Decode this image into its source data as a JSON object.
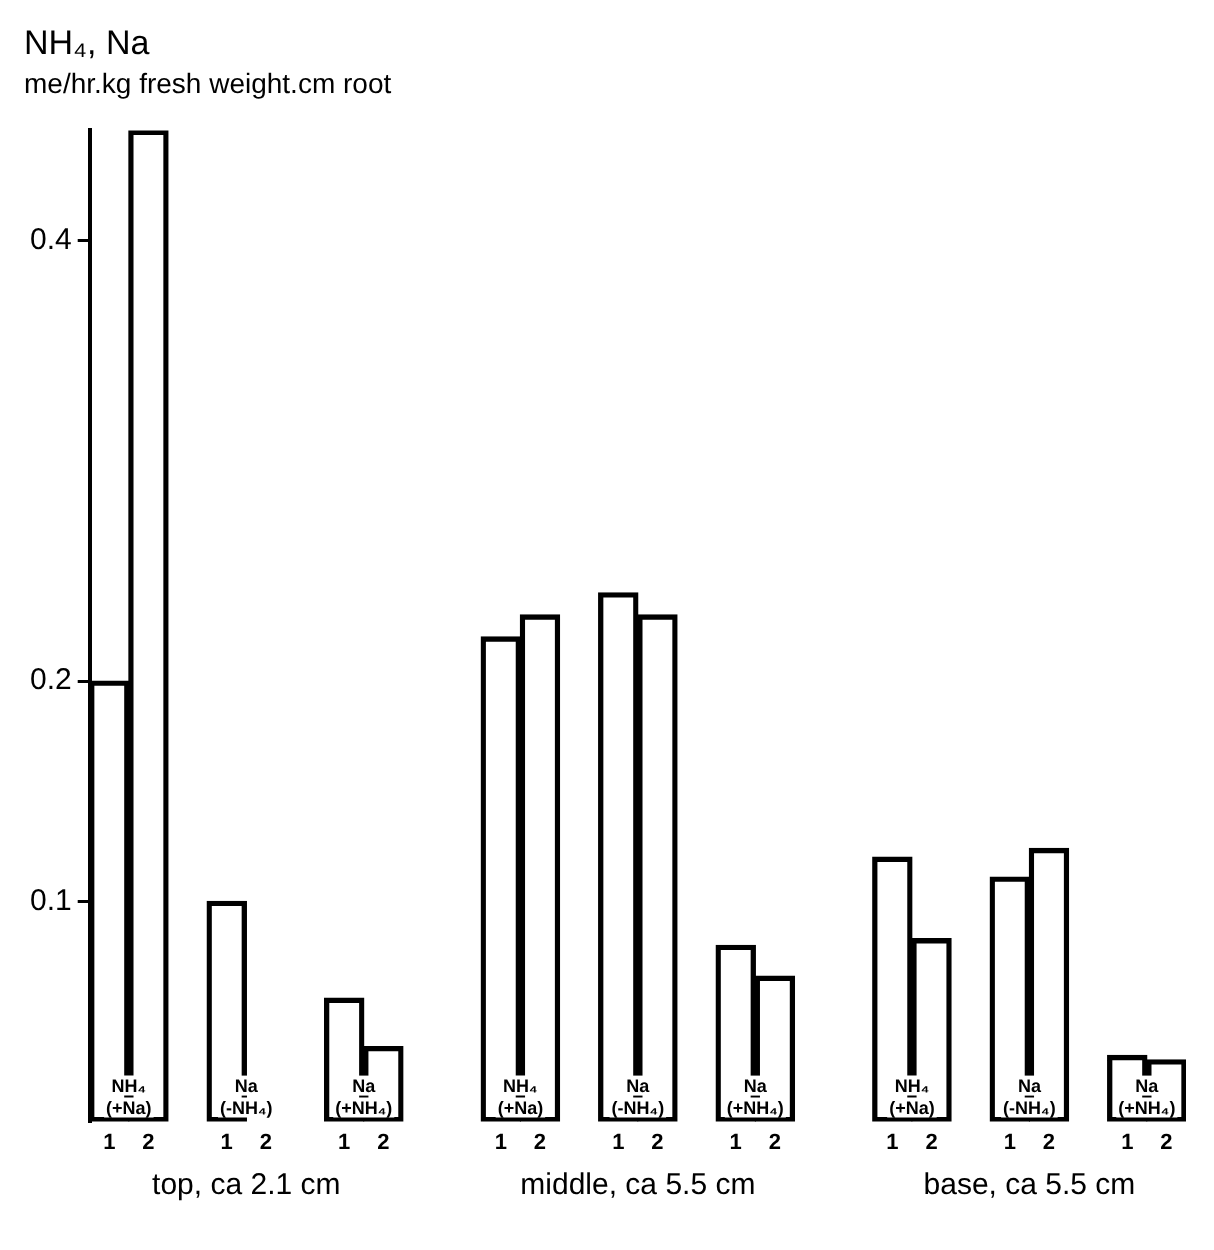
{
  "chart_data": {
    "type": "bar",
    "title": "NH₄, Na",
    "subtitle": "me/hr.kg fresh weight.cm root",
    "categories": [
      "1",
      "2",
      null,
      "1",
      "2",
      null,
      "1",
      "2",
      null,
      null,
      "1",
      "2",
      null,
      "1",
      "2",
      null,
      "1",
      "2",
      null,
      null,
      "1",
      "2",
      null,
      "1",
      "2",
      null,
      "1",
      "2"
    ],
    "values": [
      0.2,
      0.45,
      null,
      0.1,
      0,
      null,
      0.056,
      0.034,
      null,
      null,
      0.22,
      0.23,
      null,
      0.24,
      0.23,
      null,
      0.08,
      0.066,
      null,
      null,
      0.12,
      0.083,
      null,
      0.111,
      0.124,
      null,
      0.03,
      0.028
    ],
    "color": "#000000",
    "ylim": [
      0,
      0.45
    ],
    "yticks": [
      0.1,
      0.2,
      0.4
    ],
    "annotations": [
      "NH₄ (+Na)",
      "Na (-NH₄)",
      "Na (+NH₄)",
      "NH₄ (+Na)",
      "Na (-NH₄)",
      "Na (+NH₄)",
      "NH₄ (+Na)",
      "Na (-NH₄)",
      "Na (+NH₄)",
      "top, ca 2.1 cm",
      "middle, ca 5.5 cm",
      "base, ca 5.5 cm"
    ],
    "grid": false,
    "legend": false
  }
}
